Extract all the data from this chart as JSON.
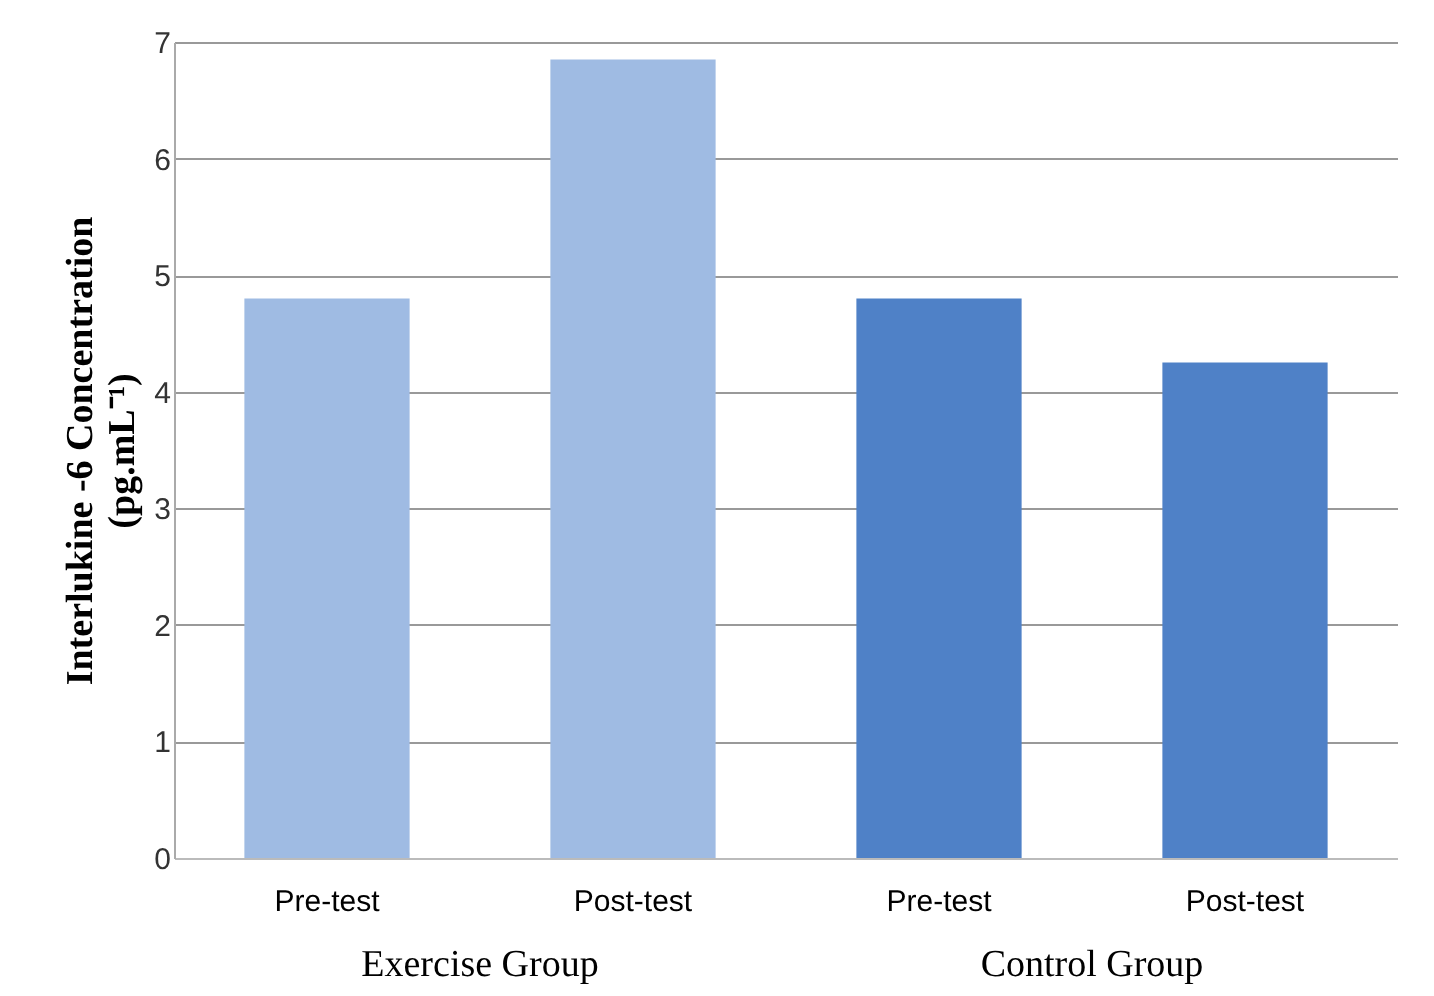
{
  "chart_data": {
    "type": "bar",
    "categories": [
      "Pre-test",
      "Post-test",
      "Pre-test",
      "Post-test"
    ],
    "values": [
      4.8,
      6.85,
      4.8,
      4.25
    ],
    "colors": [
      "#9fbbe3",
      "#9fbbe3",
      "#4f81c7",
      "#4f81c7"
    ],
    "ylabel": "Interlukine -6 Concentration (pg.mL⁻¹)",
    "annotations": [
      "Exercise Group",
      "Control Group"
    ],
    "ylim": [
      0,
      7
    ],
    "yticks": [
      0,
      1,
      2,
      3,
      4,
      5,
      6,
      7
    ],
    "grid": "y"
  }
}
